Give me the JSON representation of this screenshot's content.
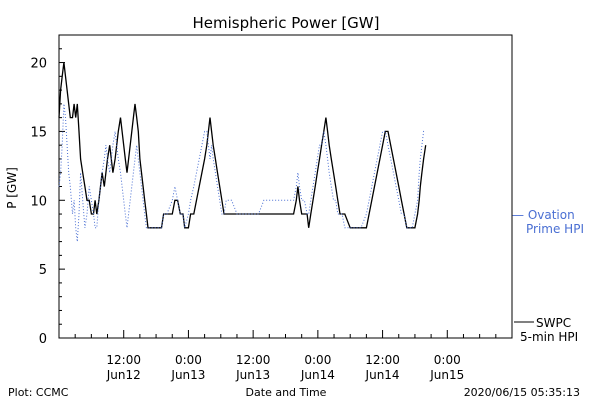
{
  "chart_data": {
    "type": "line",
    "title": "Hemispheric Power [GW]",
    "ylabel": "P [GW]",
    "xlabel": "Date and Time",
    "ylim": [
      0,
      22
    ],
    "xlim": [
      0,
      84
    ],
    "yticks": [
      0,
      5,
      10,
      15,
      20
    ],
    "xticks": [
      {
        "x": 12,
        "line1": "12:00",
        "line2": "Jun12"
      },
      {
        "x": 24,
        "line1": "0:00",
        "line2": "Jun13"
      },
      {
        "x": 36,
        "line1": "12:00",
        "line2": "Jun13"
      },
      {
        "x": 48,
        "line1": "0:00",
        "line2": "Jun14"
      },
      {
        "x": 60,
        "line1": "12:00",
        "line2": "Jun14"
      },
      {
        "x": 72,
        "line1": "0:00",
        "line2": "Jun15"
      }
    ],
    "series": [
      {
        "name": "SWPC 5-min HPI",
        "color": "#000000",
        "style": "solid",
        "points": [
          [
            0,
            16
          ],
          [
            0.3,
            18
          ],
          [
            0.6,
            19
          ],
          [
            0.9,
            20
          ],
          [
            1.2,
            19
          ],
          [
            1.5,
            18
          ],
          [
            1.8,
            17
          ],
          [
            2.1,
            16
          ],
          [
            2.5,
            16
          ],
          [
            2.8,
            17
          ],
          [
            3.1,
            16
          ],
          [
            3.4,
            17
          ],
          [
            3.7,
            15
          ],
          [
            4,
            13
          ],
          [
            4.4,
            12
          ],
          [
            4.8,
            11
          ],
          [
            5.2,
            10
          ],
          [
            5.6,
            10
          ],
          [
            6,
            9
          ],
          [
            6.4,
            9
          ],
          [
            6.7,
            10
          ],
          [
            7,
            9
          ],
          [
            7.4,
            10
          ],
          [
            7.7,
            11
          ],
          [
            8,
            12
          ],
          [
            8.4,
            11
          ],
          [
            8.7,
            12
          ],
          [
            9,
            13
          ],
          [
            9.4,
            14
          ],
          [
            9.7,
            13
          ],
          [
            10,
            12
          ],
          [
            10.4,
            13
          ],
          [
            10.7,
            14
          ],
          [
            11,
            15
          ],
          [
            11.4,
            16
          ],
          [
            11.7,
            15
          ],
          [
            12,
            14
          ],
          [
            12.3,
            13
          ],
          [
            12.6,
            12
          ],
          [
            12.9,
            13
          ],
          [
            13.2,
            14
          ],
          [
            13.5,
            15
          ],
          [
            13.8,
            16
          ],
          [
            14.1,
            17
          ],
          [
            14.4,
            16
          ],
          [
            14.7,
            15
          ],
          [
            15,
            13
          ],
          [
            15.3,
            12
          ],
          [
            15.6,
            11
          ],
          [
            15.9,
            10
          ],
          [
            16.2,
            9
          ],
          [
            16.5,
            8
          ],
          [
            17,
            8
          ],
          [
            18,
            8
          ],
          [
            19,
            8
          ],
          [
            19.4,
            9
          ],
          [
            20,
            9
          ],
          [
            21,
            9
          ],
          [
            21.5,
            10
          ],
          [
            22,
            10
          ],
          [
            22.5,
            9
          ],
          [
            23,
            9
          ],
          [
            23.3,
            8
          ],
          [
            24,
            8
          ],
          [
            24.4,
            9
          ],
          [
            25,
            9
          ],
          [
            25.5,
            10
          ],
          [
            26,
            11
          ],
          [
            26.5,
            12
          ],
          [
            27,
            13
          ],
          [
            27.4,
            14
          ],
          [
            27.7,
            15
          ],
          [
            28,
            16
          ],
          [
            28.3,
            15
          ],
          [
            28.6,
            14
          ],
          [
            29,
            13
          ],
          [
            29.4,
            12
          ],
          [
            29.8,
            11
          ],
          [
            30.2,
            10
          ],
          [
            30.6,
            9
          ],
          [
            31,
            9
          ],
          [
            32,
            9
          ],
          [
            33,
            9
          ],
          [
            34,
            9
          ],
          [
            35,
            9
          ],
          [
            36,
            9
          ],
          [
            36.5,
            9
          ],
          [
            37,
            9
          ],
          [
            38,
            9
          ],
          [
            39,
            9
          ],
          [
            40,
            9
          ],
          [
            41,
            9
          ],
          [
            42,
            9
          ],
          [
            43,
            9
          ],
          [
            43.5,
            9
          ],
          [
            44,
            10
          ],
          [
            44.3,
            11
          ],
          [
            44.6,
            10
          ],
          [
            45,
            9
          ],
          [
            45.5,
            9
          ],
          [
            46,
            9
          ],
          [
            46.3,
            8
          ],
          [
            46.7,
            9
          ],
          [
            47.1,
            10
          ],
          [
            47.5,
            11
          ],
          [
            47.9,
            12
          ],
          [
            48.3,
            13
          ],
          [
            48.7,
            14
          ],
          [
            49.1,
            15
          ],
          [
            49.5,
            16
          ],
          [
            49.8,
            15
          ],
          [
            50.1,
            14
          ],
          [
            50.5,
            13
          ],
          [
            50.9,
            12
          ],
          [
            51.3,
            11
          ],
          [
            51.7,
            10
          ],
          [
            52.1,
            9
          ],
          [
            52.5,
            9
          ],
          [
            53,
            9
          ],
          [
            54,
            8
          ],
          [
            55,
            8
          ],
          [
            56,
            8
          ],
          [
            57,
            8
          ],
          [
            57.5,
            9
          ],
          [
            58,
            10
          ],
          [
            58.5,
            11
          ],
          [
            59,
            12
          ],
          [
            59.5,
            13
          ],
          [
            60,
            14
          ],
          [
            60.5,
            15
          ],
          [
            61,
            15
          ],
          [
            61.5,
            14
          ],
          [
            62,
            13
          ],
          [
            62.5,
            12
          ],
          [
            63,
            11
          ],
          [
            63.5,
            10
          ],
          [
            64,
            9
          ],
          [
            64.5,
            8
          ],
          [
            65,
            8
          ],
          [
            65.5,
            8
          ],
          [
            66,
            8
          ],
          [
            66.5,
            9
          ],
          [
            66.8,
            10
          ],
          [
            67,
            11
          ],
          [
            67.3,
            12
          ],
          [
            67.6,
            13
          ],
          [
            68,
            14
          ]
        ]
      },
      {
        "name": "Ovation Prime HPI",
        "color": "#4a6fd3",
        "style": "dotted",
        "points": [
          [
            0,
            11
          ],
          [
            0.3,
            12
          ],
          [
            0.6,
            14
          ],
          [
            0.9,
            17
          ],
          [
            1.2,
            16
          ],
          [
            1.5,
            14
          ],
          [
            1.8,
            12
          ],
          [
            2.1,
            11
          ],
          [
            2.5,
            9
          ],
          [
            2.8,
            10
          ],
          [
            3.1,
            8
          ],
          [
            3.4,
            7
          ],
          [
            3.7,
            9
          ],
          [
            4,
            12
          ],
          [
            4.4,
            10
          ],
          [
            4.8,
            8
          ],
          [
            5.2,
            9
          ],
          [
            5.6,
            11
          ],
          [
            6,
            10
          ],
          [
            6.4,
            9
          ],
          [
            6.7,
            8
          ],
          [
            7,
            8
          ],
          [
            7.4,
            10
          ],
          [
            7.7,
            11
          ],
          [
            8,
            12
          ],
          [
            8.4,
            13
          ],
          [
            8.7,
            14
          ],
          [
            9,
            13
          ],
          [
            9.4,
            12
          ],
          [
            9.7,
            13
          ],
          [
            10,
            14
          ],
          [
            10.4,
            15
          ],
          [
            10.7,
            14
          ],
          [
            11,
            13
          ],
          [
            11.4,
            12
          ],
          [
            11.7,
            11
          ],
          [
            12,
            10
          ],
          [
            12.3,
            9
          ],
          [
            12.6,
            8
          ],
          [
            12.9,
            9
          ],
          [
            13.2,
            10
          ],
          [
            13.5,
            11
          ],
          [
            13.8,
            12
          ],
          [
            14.1,
            13
          ],
          [
            14.4,
            14
          ],
          [
            14.7,
            13
          ],
          [
            15,
            12
          ],
          [
            15.3,
            11
          ],
          [
            15.6,
            10
          ],
          [
            15.9,
            9
          ],
          [
            16.2,
            8
          ],
          [
            16.5,
            8
          ],
          [
            17,
            8
          ],
          [
            18,
            8
          ],
          [
            19,
            8
          ],
          [
            19.4,
            9
          ],
          [
            20,
            9
          ],
          [
            21,
            10
          ],
          [
            21.5,
            11
          ],
          [
            22,
            10
          ],
          [
            22.5,
            9
          ],
          [
            23,
            9
          ],
          [
            23.3,
            8
          ],
          [
            24,
            9
          ],
          [
            24.4,
            10
          ],
          [
            25,
            11
          ],
          [
            25.5,
            12
          ],
          [
            26,
            13
          ],
          [
            26.5,
            14
          ],
          [
            27,
            15
          ],
          [
            27.4,
            15
          ],
          [
            27.7,
            14
          ],
          [
            28,
            13
          ],
          [
            28.3,
            14
          ],
          [
            28.6,
            13
          ],
          [
            29,
            12
          ],
          [
            29.4,
            11
          ],
          [
            29.8,
            10
          ],
          [
            30.2,
            9
          ],
          [
            30.6,
            9
          ],
          [
            31,
            10
          ],
          [
            32,
            10
          ],
          [
            33,
            9
          ],
          [
            34,
            9
          ],
          [
            35,
            9
          ],
          [
            36,
            9
          ],
          [
            36.5,
            9
          ],
          [
            37,
            9
          ],
          [
            38,
            10
          ],
          [
            39,
            10
          ],
          [
            40,
            10
          ],
          [
            41,
            10
          ],
          [
            42,
            10
          ],
          [
            43,
            10
          ],
          [
            43.5,
            10
          ],
          [
            44,
            11
          ],
          [
            44.3,
            12
          ],
          [
            44.6,
            11
          ],
          [
            45,
            10
          ],
          [
            45.5,
            10
          ],
          [
            46,
            9
          ],
          [
            46.3,
            9
          ],
          [
            46.7,
            10
          ],
          [
            47.1,
            11
          ],
          [
            47.5,
            12
          ],
          [
            47.9,
            13
          ],
          [
            48.3,
            14
          ],
          [
            48.7,
            14
          ],
          [
            49.1,
            15
          ],
          [
            49.5,
            14
          ],
          [
            49.8,
            13
          ],
          [
            50.1,
            12
          ],
          [
            50.5,
            11
          ],
          [
            50.9,
            10
          ],
          [
            51.3,
            10
          ],
          [
            51.7,
            9
          ],
          [
            52.1,
            9
          ],
          [
            52.5,
            9
          ],
          [
            53,
            8
          ],
          [
            54,
            8
          ],
          [
            55,
            8
          ],
          [
            56,
            8
          ],
          [
            57,
            9
          ],
          [
            57.5,
            10
          ],
          [
            58,
            11
          ],
          [
            58.5,
            12
          ],
          [
            59,
            13
          ],
          [
            59.5,
            14
          ],
          [
            60,
            15
          ],
          [
            60.5,
            15
          ],
          [
            61,
            14
          ],
          [
            61.5,
            13
          ],
          [
            62,
            12
          ],
          [
            62.5,
            11
          ],
          [
            63,
            10
          ],
          [
            63.5,
            9
          ],
          [
            64,
            9
          ],
          [
            64.5,
            8
          ],
          [
            65,
            8
          ],
          [
            65.5,
            8
          ],
          [
            66,
            9
          ],
          [
            66.5,
            10
          ],
          [
            66.8,
            12
          ],
          [
            67,
            13
          ],
          [
            67.3,
            14
          ],
          [
            67.6,
            15
          ],
          [
            68,
            15
          ]
        ]
      }
    ],
    "legend": [
      {
        "lines": [
          "— Ovation",
          "Prime HPI"
        ],
        "color": "#4a6fd3"
      },
      {
        "lines": [
          "SWPC",
          "5-min HPI"
        ],
        "color": "#000000"
      }
    ],
    "footer": {
      "left": "Plot: CCMC",
      "center": "Date and Time",
      "right": "2020/06/15 05:35:13"
    },
    "grid": false
  }
}
